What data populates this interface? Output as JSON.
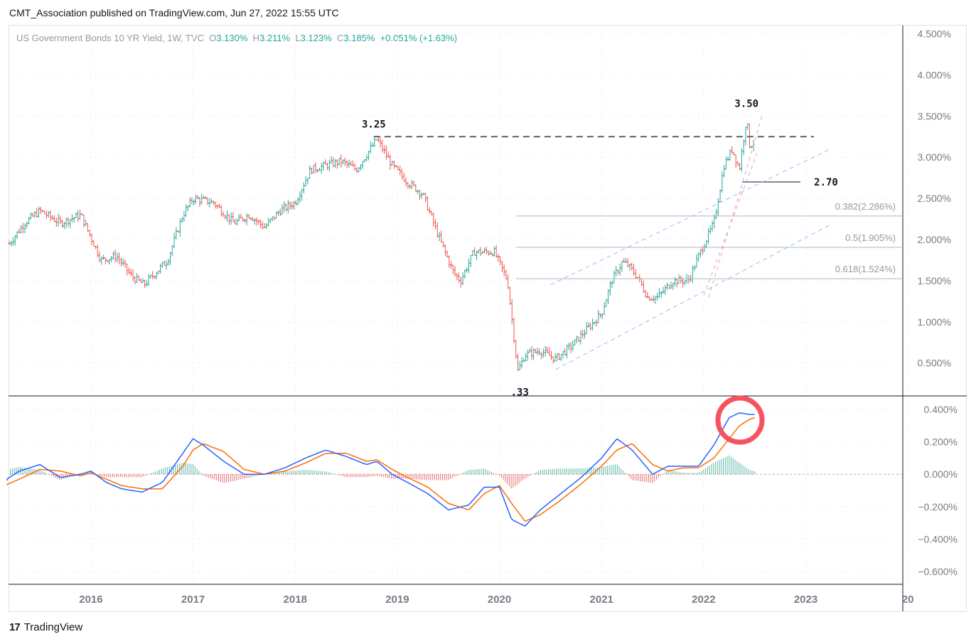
{
  "header": {
    "text": "CMT_Association published on TradingView.com, Jun 27, 2022 15:55 UTC"
  },
  "legend": {
    "symbol": "US Government Bonds 10 YR Yield, 1W, TVC",
    "o_label": "O",
    "o_value": "3.130%",
    "h_label": "H",
    "h_value": "3.211%",
    "l_label": "L",
    "l_value": "3.123%",
    "c_label": "C",
    "c_value": "3.185%",
    "change": "+0.051% (+1.63%)"
  },
  "footer": {
    "logo": "17",
    "brand": "TradingView"
  },
  "colors": {
    "up": "#26a69a",
    "down": "#ef5350",
    "macd": "#2962ff",
    "signal": "#ff6d00",
    "circle": "#f7525f",
    "grid": "#f0f3fa",
    "axis_text": "#787b86"
  },
  "chart_data": [
    {
      "type": "line",
      "title": "",
      "ylim": [
        0.1,
        4.6
      ],
      "y_ticks": [
        "4.500%",
        "4.000%",
        "3.500%",
        "3.000%",
        "2.500%",
        "2.000%",
        "1.500%",
        "1.000%",
        "0.500%"
      ],
      "x_ticks": [
        "2016",
        "2017",
        "2018",
        "2019",
        "2020",
        "2021",
        "2022",
        "2023",
        "20"
      ],
      "series": [
        {
          "x": [
            2015.2,
            2015.35,
            2015.5,
            2015.7,
            2015.9,
            2016.1,
            2016.25,
            2016.4,
            2016.52,
            2016.75,
            2016.9,
            2017.0,
            2017.2,
            2017.4,
            2017.55,
            2017.7,
            2017.85,
            2018.0,
            2018.15,
            2018.3,
            2018.45,
            2018.6,
            2018.8,
            2018.95,
            2019.1,
            2019.25,
            2019.4,
            2019.55,
            2019.62,
            2019.75,
            2019.95,
            2020.08,
            2020.18,
            2020.25,
            2020.4,
            2020.55,
            2020.7,
            2020.85,
            2021.0,
            2021.1,
            2021.2,
            2021.25,
            2021.35,
            2021.45,
            2021.55,
            2021.7,
            2021.85,
            2021.95,
            2022.1,
            2022.2,
            2022.28,
            2022.35,
            2022.42,
            2022.45,
            2022.5
          ],
          "values": [
            1.95,
            2.2,
            2.35,
            2.2,
            2.3,
            1.75,
            1.8,
            1.55,
            1.45,
            1.75,
            2.3,
            2.5,
            2.45,
            2.2,
            2.3,
            2.15,
            2.35,
            2.45,
            2.85,
            2.9,
            2.95,
            2.85,
            3.22,
            2.9,
            2.7,
            2.55,
            2.05,
            1.6,
            1.5,
            1.85,
            1.85,
            1.5,
            0.4,
            0.6,
            0.65,
            0.55,
            0.7,
            0.9,
            1.1,
            1.5,
            1.72,
            1.7,
            1.55,
            1.3,
            1.3,
            1.5,
            1.5,
            1.8,
            2.2,
            2.9,
            3.1,
            2.85,
            3.48,
            3.15,
            3.18
          ]
        }
      ],
      "annotations": [
        "3.25",
        "3.50",
        "2.70",
        ".33"
      ],
      "fib_levels": [
        {
          "label": "0.382(2.286%)",
          "value": 2.286
        },
        {
          "label": "0.5(1.905%)",
          "value": 1.905
        },
        {
          "label": "0.618(1.524%)",
          "value": 1.524
        }
      ],
      "resistance": 3.25,
      "support": 2.7
    },
    {
      "type": "line",
      "title": "",
      "ylim": [
        -0.68,
        0.48
      ],
      "y_ticks": [
        "0.400%",
        "0.200%",
        "0.000%",
        "−0.200%",
        "−0.400%",
        "−0.600%"
      ],
      "series": [
        {
          "x": [
            2015.0,
            2015.3,
            2015.5,
            2015.7,
            2015.9,
            2016.0,
            2016.15,
            2016.3,
            2016.5,
            2016.7,
            2016.9,
            2017.0,
            2017.1,
            2017.3,
            2017.5,
            2017.7,
            2017.9,
            2018.1,
            2018.3,
            2018.5,
            2018.7,
            2018.8,
            2018.95,
            2019.1,
            2019.3,
            2019.5,
            2019.7,
            2019.85,
            2020.0,
            2020.12,
            2020.25,
            2020.4,
            2020.6,
            2020.8,
            2021.0,
            2021.15,
            2021.3,
            2021.5,
            2021.65,
            2021.8,
            2021.95,
            2022.1,
            2022.25,
            2022.35,
            2022.45,
            2022.5
          ],
          "values": [
            -0.1,
            0.02,
            0.06,
            -0.02,
            0.0,
            0.02,
            -0.05,
            -0.09,
            -0.11,
            -0.05,
            0.13,
            0.22,
            0.18,
            0.08,
            0.0,
            0.0,
            0.04,
            0.1,
            0.15,
            0.11,
            0.06,
            0.08,
            0.0,
            -0.05,
            -0.12,
            -0.22,
            -0.19,
            -0.08,
            -0.08,
            -0.28,
            -0.32,
            -0.22,
            -0.12,
            -0.02,
            0.1,
            0.22,
            0.15,
            0.0,
            0.05,
            0.05,
            0.05,
            0.18,
            0.35,
            0.38,
            0.37,
            0.37
          ]
        },
        {
          "x": [
            2015.0,
            2015.3,
            2015.5,
            2015.7,
            2015.9,
            2016.0,
            2016.15,
            2016.3,
            2016.5,
            2016.7,
            2016.9,
            2017.0,
            2017.1,
            2017.3,
            2017.5,
            2017.7,
            2017.9,
            2018.1,
            2018.3,
            2018.5,
            2018.7,
            2018.8,
            2018.95,
            2019.1,
            2019.3,
            2019.5,
            2019.7,
            2019.85,
            2020.0,
            2020.12,
            2020.25,
            2020.4,
            2020.6,
            2020.8,
            2021.0,
            2021.15,
            2021.3,
            2021.5,
            2021.65,
            2021.8,
            2021.95,
            2022.1,
            2022.25,
            2022.35,
            2022.45,
            2022.5
          ],
          "values": [
            -0.11,
            -0.03,
            0.03,
            0.02,
            -0.01,
            0.01,
            -0.03,
            -0.07,
            -0.09,
            -0.09,
            0.05,
            0.15,
            0.19,
            0.14,
            0.03,
            0.0,
            0.02,
            0.07,
            0.13,
            0.13,
            0.08,
            0.09,
            0.03,
            -0.02,
            -0.08,
            -0.18,
            -0.22,
            -0.12,
            -0.07,
            -0.18,
            -0.29,
            -0.25,
            -0.16,
            -0.06,
            0.05,
            0.15,
            0.19,
            0.06,
            0.02,
            0.04,
            0.04,
            0.1,
            0.22,
            0.3,
            0.34,
            0.35
          ]
        }
      ]
    }
  ]
}
